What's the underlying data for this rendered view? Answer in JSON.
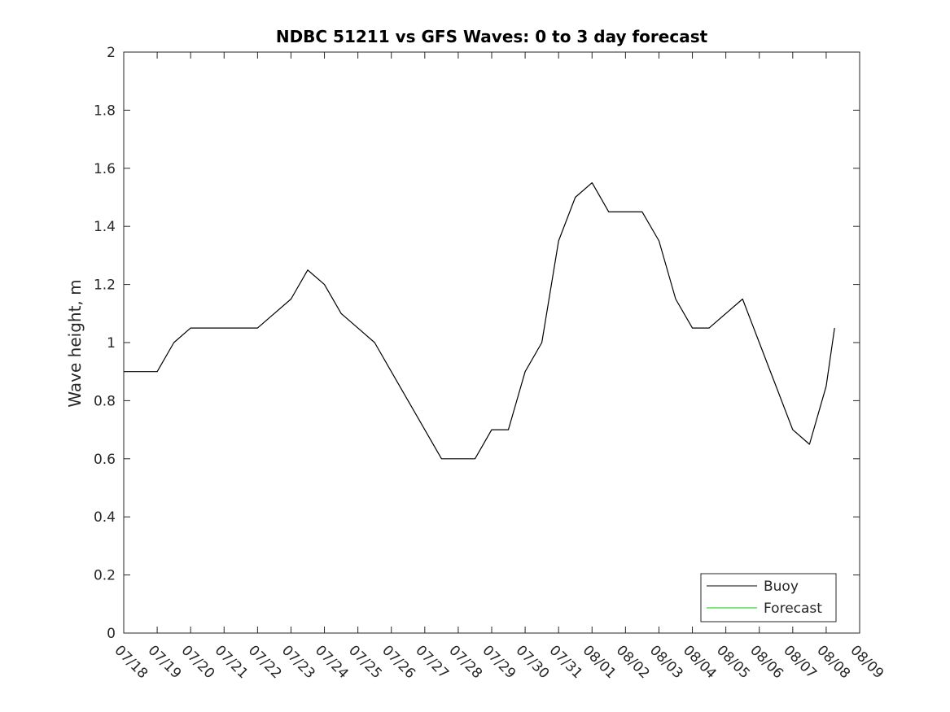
{
  "chart_data": {
    "type": "line",
    "title": "NDBC 51211 vs GFS Waves: 0 to 3 day forecast",
    "xlabel": "",
    "ylabel": "Wave height, m",
    "xlim": [
      "07/18",
      "08/09"
    ],
    "ylim": [
      0,
      2
    ],
    "yticks": [
      "0",
      "0.2",
      "0.4",
      "0.6",
      "0.8",
      "1",
      "1.2",
      "1.4",
      "1.6",
      "1.8",
      "2"
    ],
    "xticks": [
      "07/18",
      "07/19",
      "07/20",
      "07/21",
      "07/22",
      "07/23",
      "07/24",
      "07/25",
      "07/26",
      "07/27",
      "07/28",
      "07/29",
      "07/30",
      "07/31",
      "08/01",
      "08/02",
      "08/03",
      "08/04",
      "08/05",
      "08/06",
      "08/07",
      "08/08",
      "08/09"
    ],
    "grid": false,
    "legend_position": "bottom-right",
    "series": [
      {
        "name": "Buoy",
        "color": "#000000",
        "x": [
          "07/18",
          "07/18 12:00",
          "07/19",
          "07/19 12:00",
          "07/20",
          "07/20 12:00",
          "07/21",
          "07/21 12:00",
          "07/22",
          "07/22 12:00",
          "07/23",
          "07/23 12:00",
          "07/24",
          "07/24 12:00",
          "07/25",
          "07/25 12:00",
          "07/26",
          "07/26 12:00",
          "07/27",
          "07/27 12:00",
          "07/28",
          "07/28 12:00",
          "07/29",
          "07/29 12:00",
          "07/30",
          "07/30 12:00",
          "07/31",
          "07/31 12:00",
          "08/01",
          "08/01 12:00",
          "08/02",
          "08/02 12:00",
          "08/03",
          "08/03 12:00",
          "08/04",
          "08/04 12:00",
          "08/05",
          "08/05 12:00",
          "08/06",
          "08/06 12:00",
          "08/07",
          "08/07 12:00",
          "08/08",
          "08/08 06:00"
        ],
        "y": [
          0.9,
          0.9,
          0.9,
          1.0,
          1.05,
          1.05,
          1.05,
          1.05,
          1.05,
          1.1,
          1.15,
          1.25,
          1.2,
          1.1,
          1.05,
          1.0,
          0.9,
          0.8,
          0.7,
          0.6,
          0.6,
          0.6,
          0.7,
          0.7,
          0.9,
          1.0,
          1.35,
          1.5,
          1.55,
          1.45,
          1.45,
          1.45,
          1.35,
          1.15,
          1.05,
          1.05,
          1.1,
          1.15,
          1.0,
          0.85,
          0.7,
          0.65,
          0.85,
          1.05
        ]
      },
      {
        "name": "Forecast",
        "color": "#00cc00",
        "x": [],
        "y": []
      }
    ]
  }
}
